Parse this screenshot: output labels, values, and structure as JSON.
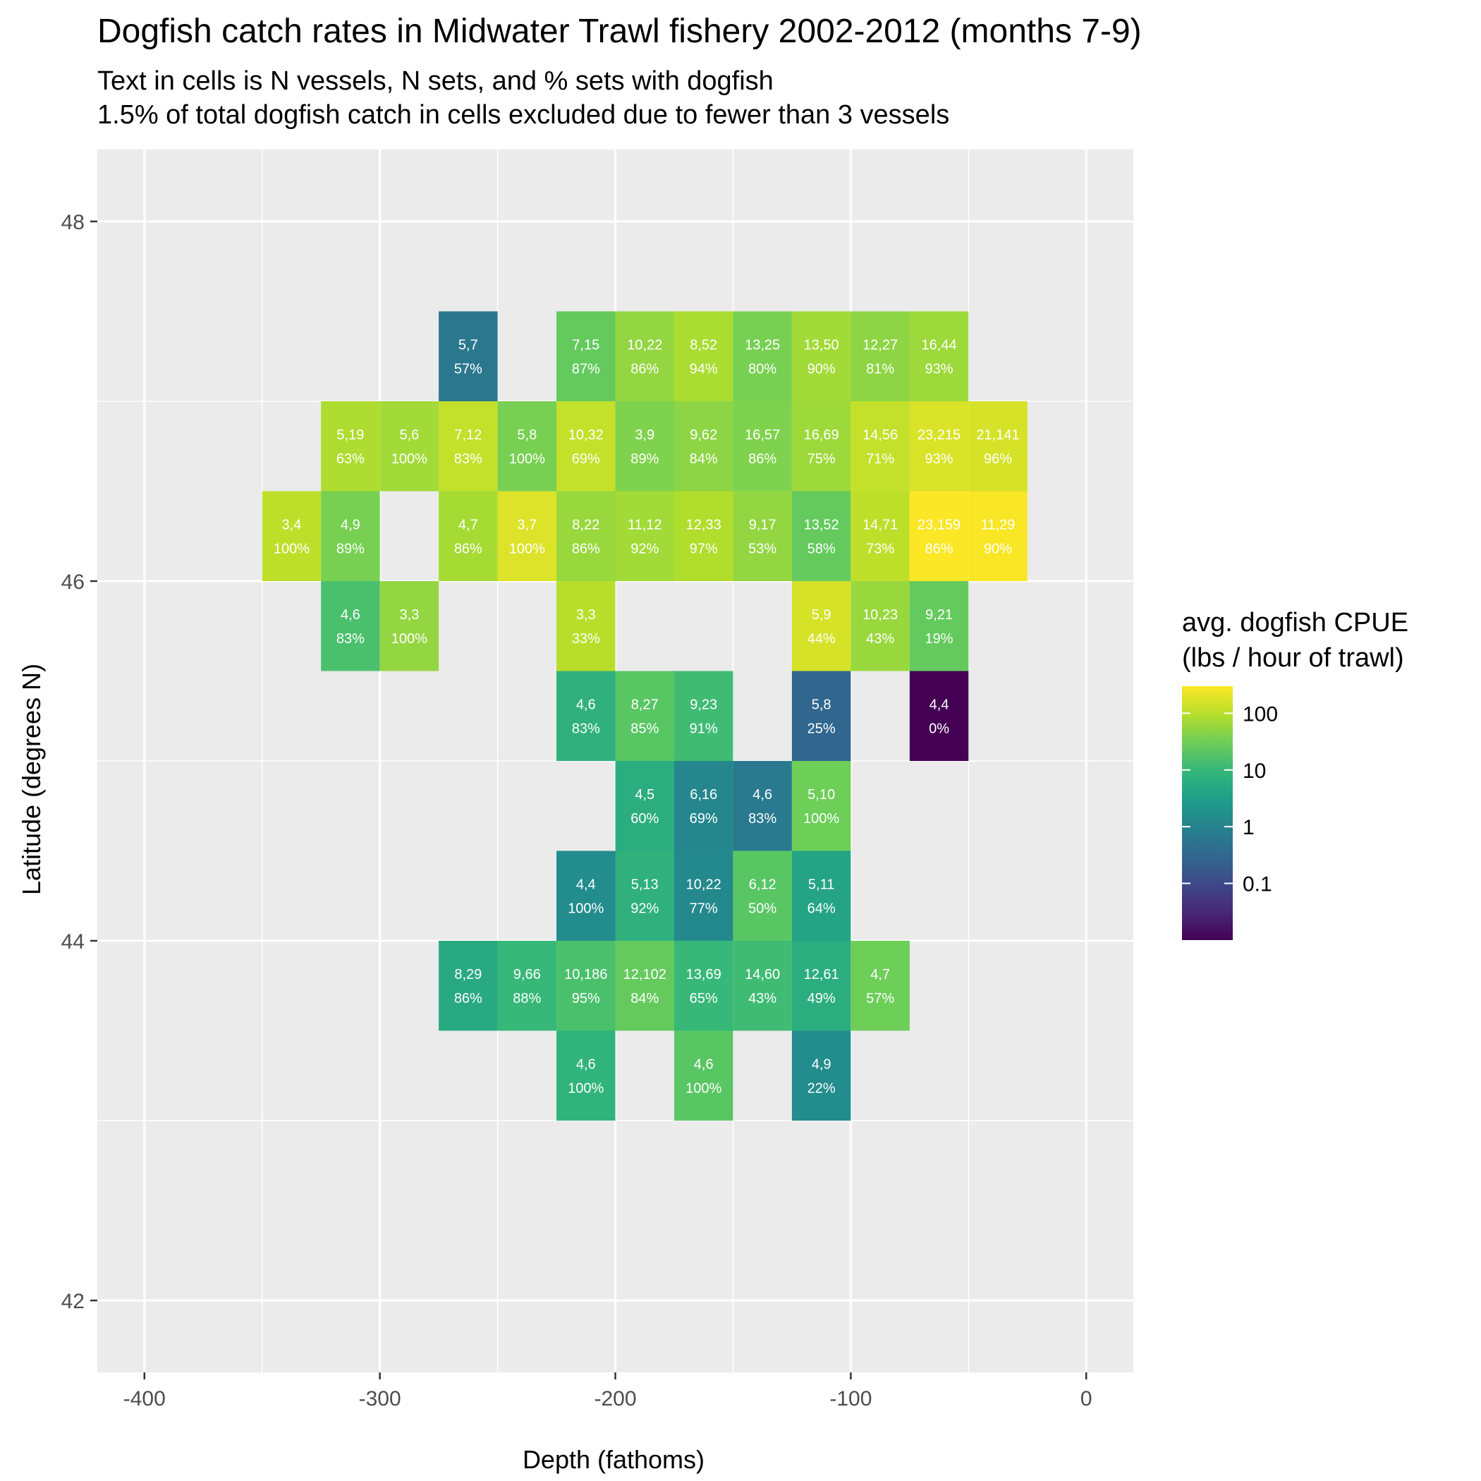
{
  "chart_data": {
    "type": "heatmap",
    "title": "Dogfish catch rates in Midwater Trawl fishery 2002-2012 (months 7-9)",
    "subtitle_lines": [
      "Text in cells is N vessels, N sets, and % sets with dogfish",
      "1.5% of total dogfish catch in cells excluded due to fewer than 3 vessels"
    ],
    "xlabel": "Depth (fathoms)",
    "ylabel": "Latitude (degrees N)",
    "xlim": [
      -420,
      20
    ],
    "ylim": [
      41.6,
      48.4
    ],
    "x_ticks": [
      -400,
      -300,
      -200,
      -100,
      0
    ],
    "x_tick_labels": [
      "-400",
      "-300",
      "-200",
      "-100",
      "0"
    ],
    "y_ticks": [
      42,
      44,
      46,
      48
    ],
    "y_tick_labels": [
      "42",
      "44",
      "46",
      "48"
    ],
    "x_bin_width": 25,
    "y_bin_height": 0.5,
    "grid": true,
    "color_scale": {
      "name": "viridis",
      "log10": true,
      "domain": [
        0.01,
        300
      ],
      "stops": [
        "#440154",
        "#482878",
        "#3e4989",
        "#31688e",
        "#26828e",
        "#1f9e89",
        "#35b779",
        "#6ece58",
        "#b5de2b",
        "#fde725"
      ]
    },
    "legend": {
      "title_lines": [
        "avg. dogfish CPUE",
        "(lbs / hour of trawl)"
      ],
      "position": "right",
      "ticks": [
        100,
        10,
        1,
        0.1
      ],
      "tick_labels": [
        "100",
        "10",
        "1",
        "0.1"
      ]
    },
    "cells": [
      {
        "x": -262.5,
        "y": 47.25,
        "n": "5,7",
        "pct": "57%",
        "cpue": 0.6
      },
      {
        "x": -212.5,
        "y": 47.25,
        "n": "7,15",
        "pct": "87%",
        "cpue": 25
      },
      {
        "x": -187.5,
        "y": 47.25,
        "n": "10,22",
        "pct": "86%",
        "cpue": 55
      },
      {
        "x": -162.5,
        "y": 47.25,
        "n": "8,52",
        "pct": "94%",
        "cpue": 80
      },
      {
        "x": -137.5,
        "y": 47.25,
        "n": "13,25",
        "pct": "80%",
        "cpue": 35
      },
      {
        "x": -112.5,
        "y": 47.25,
        "n": "13,50",
        "pct": "90%",
        "cpue": 70
      },
      {
        "x": -87.5,
        "y": 47.25,
        "n": "12,27",
        "pct": "81%",
        "cpue": 50
      },
      {
        "x": -62.5,
        "y": 47.25,
        "n": "16,44",
        "pct": "93%",
        "cpue": 65
      },
      {
        "x": -312.5,
        "y": 46.75,
        "n": "5,19",
        "pct": "63%",
        "cpue": 85
      },
      {
        "x": -287.5,
        "y": 46.75,
        "n": "5,6",
        "pct": "100%",
        "cpue": 70
      },
      {
        "x": -262.5,
        "y": 46.75,
        "n": "7,12",
        "pct": "83%",
        "cpue": 120
      },
      {
        "x": -237.5,
        "y": 46.75,
        "n": "5,8",
        "pct": "100%",
        "cpue": 35
      },
      {
        "x": -212.5,
        "y": 46.75,
        "n": "10,32",
        "pct": "69%",
        "cpue": 120
      },
      {
        "x": -187.5,
        "y": 46.75,
        "n": "3,9",
        "pct": "89%",
        "cpue": 40
      },
      {
        "x": -162.5,
        "y": 46.75,
        "n": "9,62",
        "pct": "84%",
        "cpue": 50
      },
      {
        "x": -137.5,
        "y": 46.75,
        "n": "16,57",
        "pct": "86%",
        "cpue": 40
      },
      {
        "x": -112.5,
        "y": 46.75,
        "n": "16,69",
        "pct": "75%",
        "cpue": 65
      },
      {
        "x": -87.5,
        "y": 46.75,
        "n": "14,56",
        "pct": "71%",
        "cpue": 120
      },
      {
        "x": -62.5,
        "y": 46.75,
        "n": "23,215",
        "pct": "93%",
        "cpue": 170
      },
      {
        "x": -37.5,
        "y": 46.75,
        "n": "21,141",
        "pct": "96%",
        "cpue": 160
      },
      {
        "x": -337.5,
        "y": 46.25,
        "n": "3,4",
        "pct": "100%",
        "cpue": 110
      },
      {
        "x": -312.5,
        "y": 46.25,
        "n": "4,9",
        "pct": "89%",
        "cpue": 35
      },
      {
        "x": -262.5,
        "y": 46.25,
        "n": "4,7",
        "pct": "86%",
        "cpue": 75
      },
      {
        "x": -237.5,
        "y": 46.25,
        "n": "3,7",
        "pct": "100%",
        "cpue": 180
      },
      {
        "x": -212.5,
        "y": 46.25,
        "n": "8,22",
        "pct": "86%",
        "cpue": 60
      },
      {
        "x": -187.5,
        "y": 46.25,
        "n": "11,12",
        "pct": "92%",
        "cpue": 70
      },
      {
        "x": -162.5,
        "y": 46.25,
        "n": "12,33",
        "pct": "97%",
        "cpue": 90
      },
      {
        "x": -137.5,
        "y": 46.25,
        "n": "9,17",
        "pct": "53%",
        "cpue": 55
      },
      {
        "x": -112.5,
        "y": 46.25,
        "n": "13,52",
        "pct": "58%",
        "cpue": 25
      },
      {
        "x": -87.5,
        "y": 46.25,
        "n": "14,71",
        "pct": "73%",
        "cpue": 110
      },
      {
        "x": -62.5,
        "y": 46.25,
        "n": "23,159",
        "pct": "86%",
        "cpue": 290
      },
      {
        "x": -37.5,
        "y": 46.25,
        "n": "11,29",
        "pct": "90%",
        "cpue": 280
      },
      {
        "x": -312.5,
        "y": 45.75,
        "n": "4,6",
        "pct": "83%",
        "cpue": 15
      },
      {
        "x": -287.5,
        "y": 45.75,
        "n": "3,3",
        "pct": "100%",
        "cpue": 55
      },
      {
        "x": -212.5,
        "y": 45.75,
        "n": "3,3",
        "pct": "33%",
        "cpue": 100
      },
      {
        "x": -112.5,
        "y": 45.75,
        "n": "5,9",
        "pct": "44%",
        "cpue": 160
      },
      {
        "x": -87.5,
        "y": 45.75,
        "n": "10,23",
        "pct": "43%",
        "cpue": 60
      },
      {
        "x": -62.5,
        "y": 45.75,
        "n": "9,21",
        "pct": "19%",
        "cpue": 25
      },
      {
        "x": -212.5,
        "y": 45.25,
        "n": "4,6",
        "pct": "83%",
        "cpue": 7
      },
      {
        "x": -187.5,
        "y": 45.25,
        "n": "8,27",
        "pct": "85%",
        "cpue": 20
      },
      {
        "x": -162.5,
        "y": 45.25,
        "n": "9,23",
        "pct": "91%",
        "cpue": 12
      },
      {
        "x": -112.5,
        "y": 45.25,
        "n": "5,8",
        "pct": "25%",
        "cpue": 0.3
      },
      {
        "x": -62.5,
        "y": 45.25,
        "n": "4,4",
        "pct": "0%",
        "cpue": 0.01
      },
      {
        "x": -187.5,
        "y": 44.75,
        "n": "4,5",
        "pct": "60%",
        "cpue": 6
      },
      {
        "x": -162.5,
        "y": 44.75,
        "n": "6,16",
        "pct": "69%",
        "cpue": 1.2
      },
      {
        "x": -137.5,
        "y": 44.75,
        "n": "4,6",
        "pct": "83%",
        "cpue": 0.7
      },
      {
        "x": -112.5,
        "y": 44.75,
        "n": "5,10",
        "pct": "100%",
        "cpue": 30
      },
      {
        "x": -212.5,
        "y": 44.25,
        "n": "4,4",
        "pct": "100%",
        "cpue": 1.5
      },
      {
        "x": -187.5,
        "y": 44.25,
        "n": "5,13",
        "pct": "92%",
        "cpue": 7
      },
      {
        "x": -162.5,
        "y": 44.25,
        "n": "10,22",
        "pct": "77%",
        "cpue": 1.3
      },
      {
        "x": -137.5,
        "y": 44.25,
        "n": "6,12",
        "pct": "50%",
        "cpue": 20
      },
      {
        "x": -112.5,
        "y": 44.25,
        "n": "5,11",
        "pct": "64%",
        "cpue": 4
      },
      {
        "x": -262.5,
        "y": 43.75,
        "n": "8,29",
        "pct": "86%",
        "cpue": 5
      },
      {
        "x": -237.5,
        "y": 43.75,
        "n": "9,66",
        "pct": "88%",
        "cpue": 10
      },
      {
        "x": -212.5,
        "y": 43.75,
        "n": "10,186",
        "pct": "95%",
        "cpue": 15
      },
      {
        "x": -187.5,
        "y": 43.75,
        "n": "12,102",
        "pct": "84%",
        "cpue": 25
      },
      {
        "x": -162.5,
        "y": 43.75,
        "n": "13,69",
        "pct": "65%",
        "cpue": 10
      },
      {
        "x": -137.5,
        "y": 43.75,
        "n": "14,60",
        "pct": "43%",
        "cpue": 12
      },
      {
        "x": -112.5,
        "y": 43.75,
        "n": "12,61",
        "pct": "49%",
        "cpue": 6
      },
      {
        "x": -87.5,
        "y": 43.75,
        "n": "4,7",
        "pct": "57%",
        "cpue": 30
      },
      {
        "x": -212.5,
        "y": 43.25,
        "n": "4,6",
        "pct": "100%",
        "cpue": 8
      },
      {
        "x": -162.5,
        "y": 43.25,
        "n": "4,6",
        "pct": "100%",
        "cpue": 20
      },
      {
        "x": -112.5,
        "y": 43.25,
        "n": "4,9",
        "pct": "22%",
        "cpue": 1.5
      }
    ]
  }
}
